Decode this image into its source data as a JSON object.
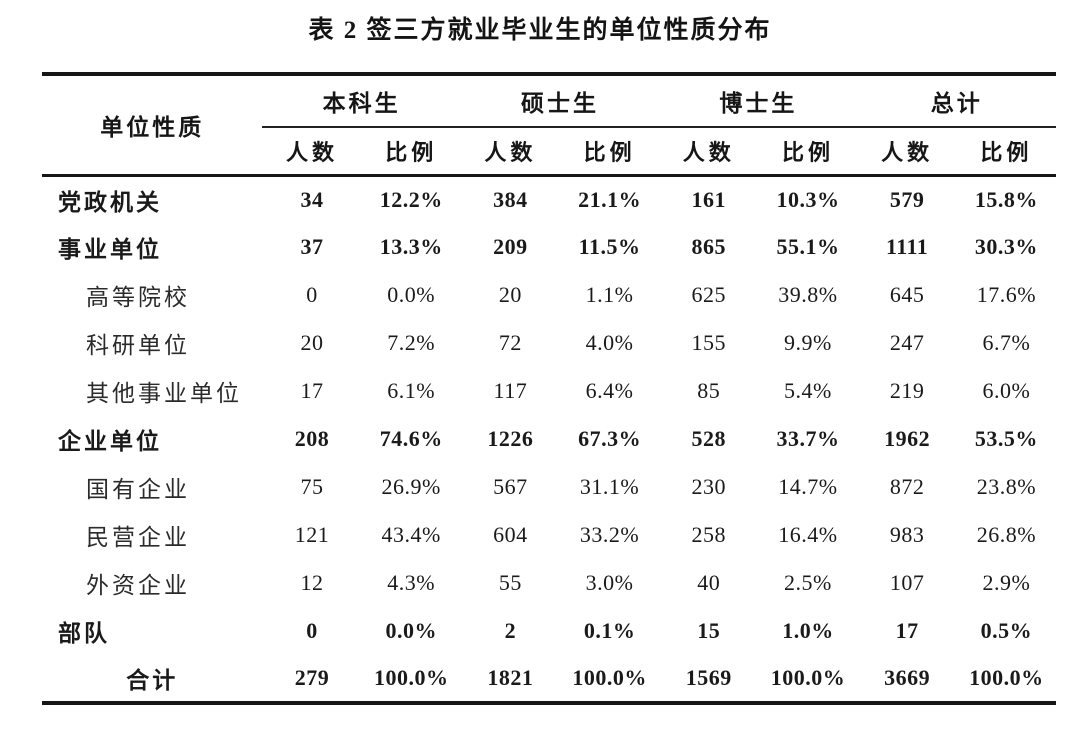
{
  "title": "表 2 签三方就业毕业生的单位性质分布",
  "table": {
    "corner_header": "单位性质",
    "groups": [
      {
        "label": "本科生"
      },
      {
        "label": "硕士生"
      },
      {
        "label": "博士生"
      },
      {
        "label": "总计"
      }
    ],
    "subheaders": {
      "count": "人数",
      "ratio": "比例"
    },
    "rows": [
      {
        "label": "党政机关",
        "bold": true,
        "indent": false,
        "align": "left",
        "values": [
          "34",
          "12.2%",
          "384",
          "21.1%",
          "161",
          "10.3%",
          "579",
          "15.8%"
        ]
      },
      {
        "label": "事业单位",
        "bold": true,
        "indent": false,
        "align": "left",
        "values": [
          "37",
          "13.3%",
          "209",
          "11.5%",
          "865",
          "55.1%",
          "1111",
          "30.3%"
        ]
      },
      {
        "label": "高等院校",
        "bold": false,
        "indent": true,
        "align": "left",
        "values": [
          "0",
          "0.0%",
          "20",
          "1.1%",
          "625",
          "39.8%",
          "645",
          "17.6%"
        ]
      },
      {
        "label": "科研单位",
        "bold": false,
        "indent": true,
        "align": "left",
        "values": [
          "20",
          "7.2%",
          "72",
          "4.0%",
          "155",
          "9.9%",
          "247",
          "6.7%"
        ]
      },
      {
        "label": "其他事业单位",
        "bold": false,
        "indent": true,
        "align": "left",
        "values": [
          "17",
          "6.1%",
          "117",
          "6.4%",
          "85",
          "5.4%",
          "219",
          "6.0%"
        ]
      },
      {
        "label": "企业单位",
        "bold": true,
        "indent": false,
        "align": "left",
        "values": [
          "208",
          "74.6%",
          "1226",
          "67.3%",
          "528",
          "33.7%",
          "1962",
          "53.5%"
        ]
      },
      {
        "label": "国有企业",
        "bold": false,
        "indent": true,
        "align": "left",
        "values": [
          "75",
          "26.9%",
          "567",
          "31.1%",
          "230",
          "14.7%",
          "872",
          "23.8%"
        ]
      },
      {
        "label": "民营企业",
        "bold": false,
        "indent": true,
        "align": "left",
        "values": [
          "121",
          "43.4%",
          "604",
          "33.2%",
          "258",
          "16.4%",
          "983",
          "26.8%"
        ]
      },
      {
        "label": "外资企业",
        "bold": false,
        "indent": true,
        "align": "left",
        "values": [
          "12",
          "4.3%",
          "55",
          "3.0%",
          "40",
          "2.5%",
          "107",
          "2.9%"
        ]
      },
      {
        "label": "部队",
        "bold": true,
        "indent": false,
        "align": "left",
        "values": [
          "0",
          "0.0%",
          "2",
          "0.1%",
          "15",
          "1.0%",
          "17",
          "0.5%"
        ]
      },
      {
        "label": "合计",
        "bold": true,
        "indent": false,
        "align": "center",
        "values": [
          "279",
          "100.0%",
          "1821",
          "100.0%",
          "1569",
          "100.0%",
          "3669",
          "100.0%"
        ]
      }
    ]
  }
}
